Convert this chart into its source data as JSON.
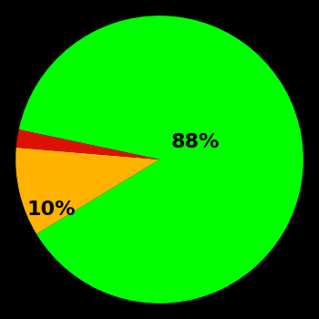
{
  "slices": [
    88,
    10,
    2
  ],
  "colors": [
    "#00ff00",
    "#ffb300",
    "#dd1100"
  ],
  "labels": [
    "88%",
    "10%",
    ""
  ],
  "background_color": "#000000",
  "label_fontsize": 16,
  "label_fontweight": "bold",
  "startangle": 168,
  "figsize": [
    3.5,
    3.5
  ],
  "dpi": 100
}
